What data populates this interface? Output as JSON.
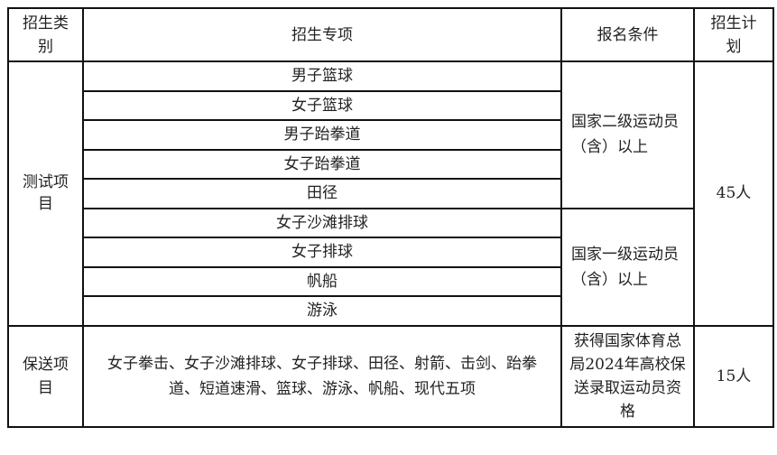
{
  "headers": [
    "招生类别",
    "招生专项",
    "报名条件",
    "招生计划"
  ],
  "test": {
    "category": "测试项目",
    "items": [
      "男子篮球",
      "女子篮球",
      "男子跆拳道",
      "女子跆拳道",
      "田径",
      "女子沙滩排球",
      "女子排球",
      "帆船",
      "游泳"
    ],
    "condition_1": "国家二级运动员（含）以上",
    "condition_2": "国家一级运动员（含）以上",
    "plan": "45人"
  },
  "recommend": {
    "category": "保送项目",
    "items": "女子拳击、女子沙滩排球、女子排球、田径、射箭、击剑、跆拳道、短道速滑、篮球、游泳、帆船、现代五项",
    "condition": "获得国家体育总局2024年高校保送录取运动员资格",
    "plan": "15人"
  }
}
